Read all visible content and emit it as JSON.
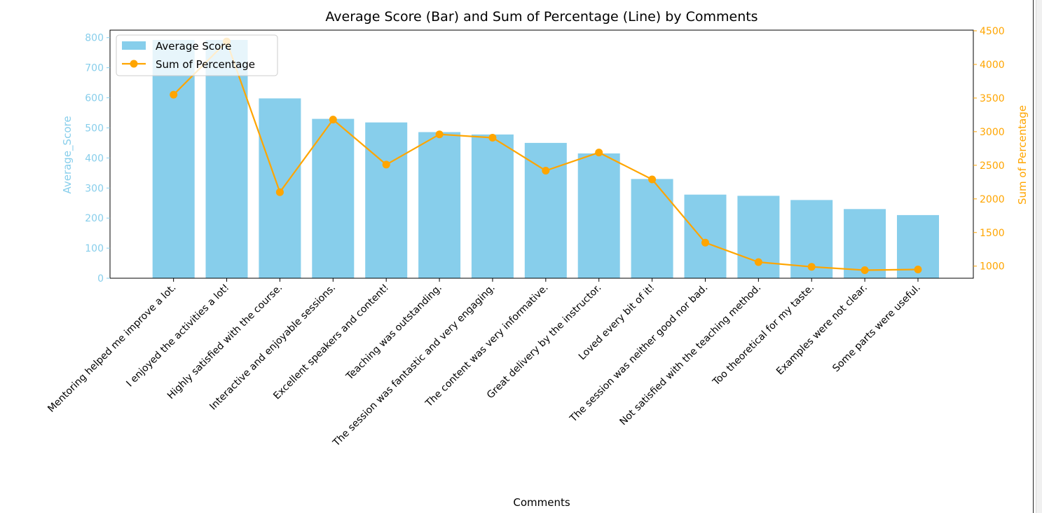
{
  "chart_data": {
    "type": "bar",
    "title": "Average Score (Bar) and Sum of Percentage (Line) by Comments",
    "xlabel": "Comments",
    "ylabel": "Average_Score",
    "y2label": "Sum of Percentage",
    "categories": [
      "Mentoring helped me improve a lot.",
      "I enjoyed the activities a lot!",
      "Highly satisfied with the course.",
      "Interactive and enjoyable sessions.",
      "Excellent speakers and content!",
      "Teaching was outstanding.",
      "The session was fantastic and very engaging.",
      "The content was very informative.",
      "Great delivery by the instructor.",
      "Loved every bit of it!",
      "The session was neither good nor bad.",
      "Not satisfied with the teaching method.",
      "Too theoretical for my taste.",
      "Examples were not clear.",
      "Some parts were useful."
    ],
    "series": [
      {
        "name": "Average Score",
        "type": "bar",
        "axis": "left",
        "color": "#87ceeb",
        "values": [
          800,
          800,
          598,
          530,
          518,
          486,
          478,
          450,
          415,
          330,
          278,
          274,
          260,
          230,
          210
        ]
      },
      {
        "name": "Sum of Percentage",
        "type": "line",
        "axis": "right",
        "color": "#ffa500",
        "values": [
          3550,
          4340,
          2100,
          3180,
          2510,
          2960,
          2910,
          2420,
          2690,
          2290,
          1350,
          1060,
          990,
          940,
          950
        ]
      }
    ],
    "ylim": [
      0,
      825
    ],
    "y2lim": [
      820,
      4510
    ],
    "yticks": [
      0,
      100,
      200,
      300,
      400,
      500,
      600,
      700,
      800
    ],
    "y2ticks": [
      1000,
      1500,
      2000,
      2500,
      3000,
      3500,
      4000,
      4500
    ],
    "legend_position": "top-left",
    "grid": false,
    "left_axis_color": "#87ceeb",
    "right_axis_color": "#ffa500"
  }
}
